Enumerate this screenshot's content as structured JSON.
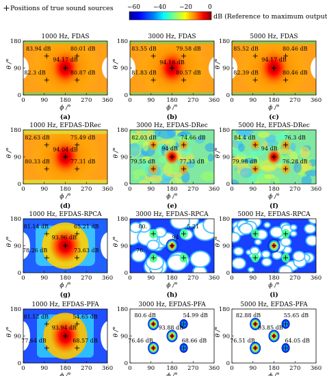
{
  "legend": {
    "marker_text": "Positions of true sound sources",
    "colorbar_ticks": [
      "−60",
      "−40",
      "−20",
      "0"
    ],
    "colorbar_label": "dB (Reference to maximum output)",
    "colormap": [
      "#00008f",
      "#0000ff",
      "#0080ff",
      "#00ffff",
      "#80ff80",
      "#ffff00",
      "#ff8000",
      "#ff0000",
      "#800000"
    ]
  },
  "axes": {
    "xlabel": "ϕ /°",
    "ylabel": "θ /°",
    "xticks": [
      "0",
      "90",
      "180",
      "270",
      "360"
    ],
    "yticks": [
      "0",
      "90",
      "180"
    ],
    "xlim": [
      0,
      360
    ],
    "ylim": [
      0,
      180
    ]
  },
  "chart_data": [
    {
      "type": "heatmap",
      "title": "1000 Hz, FDAS",
      "tag": "(a)",
      "style": "fdas",
      "sources": [
        {
          "x": 100,
          "y": 130
        },
        {
          "x": 230,
          "y": 130
        },
        {
          "x": 180,
          "y": 90
        },
        {
          "x": 100,
          "y": 50
        },
        {
          "x": 230,
          "y": 50
        }
      ],
      "labels": [
        {
          "text": "83.94 dB",
          "x": 65,
          "y": 148
        },
        {
          "text": "80.01 dB",
          "x": 255,
          "y": 148
        },
        {
          "text": "94.17 dB",
          "x": 180,
          "y": 112
        },
        {
          "text": "82.3 dB",
          "x": 50,
          "y": 68
        },
        {
          "text": "80.87 dB",
          "x": 255,
          "y": 68
        }
      ]
    },
    {
      "type": "heatmap",
      "title": "3000 Hz, FDAS",
      "tag": "(b)",
      "style": "fdas",
      "sources": [
        {
          "x": 100,
          "y": 130
        },
        {
          "x": 230,
          "y": 130
        },
        {
          "x": 180,
          "y": 90
        },
        {
          "x": 100,
          "y": 50
        },
        {
          "x": 230,
          "y": 50
        }
      ],
      "labels": [
        {
          "text": "83.55 dB",
          "x": 60,
          "y": 148
        },
        {
          "text": "79.58 dB",
          "x": 250,
          "y": 148
        },
        {
          "text": "94.16 dB",
          "x": 180,
          "y": 103
        },
        {
          "text": "81.83 dB",
          "x": 60,
          "y": 68
        },
        {
          "text": "80.57 dB",
          "x": 250,
          "y": 68
        }
      ]
    },
    {
      "type": "heatmap",
      "title": "5000 Hz, FDAS",
      "tag": "(c)",
      "style": "fdas",
      "sources": [
        {
          "x": 100,
          "y": 130
        },
        {
          "x": 230,
          "y": 130
        },
        {
          "x": 180,
          "y": 90
        },
        {
          "x": 100,
          "y": 50
        },
        {
          "x": 230,
          "y": 50
        }
      ],
      "labels": [
        {
          "text": "85.52 dB",
          "x": 60,
          "y": 148
        },
        {
          "text": "80.46 dB",
          "x": 270,
          "y": 148
        },
        {
          "text": "94.17 dB",
          "x": 180,
          "y": 112
        },
        {
          "text": "82.39 dB",
          "x": 60,
          "y": 68
        },
        {
          "text": "80.46 dB",
          "x": 270,
          "y": 68
        }
      ]
    },
    {
      "type": "heatmap",
      "title": "1000 Hz, EFDAS-DRec",
      "tag": "(d)",
      "style": "drec_low",
      "sources": [
        {
          "x": 100,
          "y": 130
        },
        {
          "x": 230,
          "y": 130
        },
        {
          "x": 180,
          "y": 90
        },
        {
          "x": 100,
          "y": 50
        },
        {
          "x": 230,
          "y": 50
        }
      ],
      "labels": [
        {
          "text": "82.63 dB",
          "x": 60,
          "y": 148
        },
        {
          "text": "75.49 dB",
          "x": 255,
          "y": 148
        },
        {
          "text": "94.04 dB",
          "x": 180,
          "y": 108
        },
        {
          "text": "80.33 dB",
          "x": 60,
          "y": 68
        },
        {
          "text": "77.31 dB",
          "x": 255,
          "y": 68
        }
      ]
    },
    {
      "type": "heatmap",
      "title": "3000 Hz, EFDAS-DRec",
      "tag": "(e)",
      "style": "drec_high",
      "sources": [
        {
          "x": 100,
          "y": 130
        },
        {
          "x": 230,
          "y": 130
        },
        {
          "x": 180,
          "y": 90
        },
        {
          "x": 100,
          "y": 50
        },
        {
          "x": 230,
          "y": 50
        }
      ],
      "labels": [
        {
          "text": "82.03 dB",
          "x": 60,
          "y": 148
        },
        {
          "text": "74.66 dB",
          "x": 270,
          "y": 148
        },
        {
          "text": "94 dB",
          "x": 170,
          "y": 112
        },
        {
          "text": "79.55 dB",
          "x": 55,
          "y": 68
        },
        {
          "text": "77.33 dB",
          "x": 265,
          "y": 68
        }
      ]
    },
    {
      "type": "heatmap",
      "title": "5000 Hz, EFDAS-DRec",
      "tag": "(f)",
      "style": "drec_high",
      "sources": [
        {
          "x": 100,
          "y": 130
        },
        {
          "x": 230,
          "y": 130
        },
        {
          "x": 180,
          "y": 90
        },
        {
          "x": 100,
          "y": 50
        },
        {
          "x": 230,
          "y": 50
        }
      ],
      "labels": [
        {
          "text": "84.4 dB",
          "x": 55,
          "y": 148
        },
        {
          "text": "76.3 dB",
          "x": 270,
          "y": 148
        },
        {
          "text": "94 dB",
          "x": 160,
          "y": 112
        },
        {
          "text": "79.98 dB",
          "x": 55,
          "y": 68
        },
        {
          "text": "76.28 dB",
          "x": 270,
          "y": 68
        }
      ]
    },
    {
      "type": "heatmap",
      "title": "1000 Hz, EFDAS-RPCA",
      "tag": "(g)",
      "style": "rpca_low",
      "sources": [
        {
          "x": 100,
          "y": 130
        },
        {
          "x": 230,
          "y": 130
        },
        {
          "x": 180,
          "y": 90
        },
        {
          "x": 100,
          "y": 50
        },
        {
          "x": 230,
          "y": 50
        }
      ],
      "labels": [
        {
          "text": "81.14 dB",
          "x": 55,
          "y": 148
        },
        {
          "text": "65.21 dB",
          "x": 270,
          "y": 148
        },
        {
          "text": "93.96 dB",
          "x": 175,
          "y": 112
        },
        {
          "text": "78.26 dB",
          "x": 50,
          "y": 68
        },
        {
          "text": "73.63 dB",
          "x": 270,
          "y": 68
        }
      ]
    },
    {
      "type": "heatmap",
      "title": "3000 Hz, EFDAS-RPCA",
      "tag": "(h)",
      "style": "rpca_high",
      "sources": [
        {
          "x": 100,
          "y": 130
        },
        {
          "x": 230,
          "y": 130
        },
        {
          "x": 180,
          "y": 90
        },
        {
          "x": 100,
          "y": 50
        },
        {
          "x": 230,
          "y": 50
        }
      ],
      "labels": [
        {
          "text": "80.",
          "x": 55,
          "y": 148
        },
        {
          "text": "5.21",
          "x": 270,
          "y": 148
        },
        {
          "text": "94",
          "x": 195,
          "y": 112
        },
        {
          "text": "76.",
          "x": 45,
          "y": 68
        },
        {
          "text": "",
          "x": 0,
          "y": 0
        }
      ]
    },
    {
      "type": "heatmap",
      "title": "5000 Hz, EFDAS-RPCA",
      "tag": "(i)",
      "style": "rpca_high2",
      "sources": [
        {
          "x": 100,
          "y": 130
        },
        {
          "x": 230,
          "y": 130
        },
        {
          "x": 180,
          "y": 90
        },
        {
          "x": 100,
          "y": 50
        },
        {
          "x": 230,
          "y": 50
        }
      ],
      "labels": []
    },
    {
      "type": "heatmap",
      "title": "1000 Hz, EFDAS-PFA",
      "tag": "(j)",
      "style": "pfa_low",
      "sources": [
        {
          "x": 100,
          "y": 130
        },
        {
          "x": 230,
          "y": 130
        },
        {
          "x": 180,
          "y": 90
        },
        {
          "x": 100,
          "y": 50
        },
        {
          "x": 230,
          "y": 50
        }
      ],
      "labels": [
        {
          "text": "81.12 dB",
          "x": 55,
          "y": 148
        },
        {
          "text": "54.65 dB",
          "x": 265,
          "y": 148
        },
        {
          "text": "93.94 dB",
          "x": 175,
          "y": 112
        },
        {
          "text": "77.64 dB",
          "x": 45,
          "y": 68
        },
        {
          "text": "68.57 dB",
          "x": 265,
          "y": 68
        }
      ]
    },
    {
      "type": "heatmap",
      "title": "3000 Hz, EFDAS-PFA",
      "tag": "(k)",
      "style": "pfa",
      "sources": [
        {
          "x": 100,
          "y": 130
        },
        {
          "x": 230,
          "y": 130
        },
        {
          "x": 180,
          "y": 90
        },
        {
          "x": 100,
          "y": 50
        },
        {
          "x": 230,
          "y": 50
        }
      ],
      "labels": [
        {
          "text": "80.6 dB",
          "x": 65,
          "y": 153
        },
        {
          "text": "54.99 dB",
          "x": 280,
          "y": 153
        },
        {
          "text": "93.88 dB",
          "x": 175,
          "y": 112
        },
        {
          "text": "76.46 dB",
          "x": 45,
          "y": 68
        },
        {
          "text": "68.66 dB",
          "x": 275,
          "y": 68
        }
      ]
    },
    {
      "type": "heatmap",
      "title": "5000 Hz, EFDAS-PFA",
      "tag": "(l)",
      "style": "pfa",
      "sources": [
        {
          "x": 100,
          "y": 130
        },
        {
          "x": 230,
          "y": 130
        },
        {
          "x": 180,
          "y": 90
        },
        {
          "x": 100,
          "y": 50
        },
        {
          "x": 230,
          "y": 50
        }
      ],
      "labels": [
        {
          "text": "82.88 dB",
          "x": 70,
          "y": 153
        },
        {
          "text": "55.65 dB",
          "x": 275,
          "y": 153
        },
        {
          "text": "93.85 dB",
          "x": 165,
          "y": 112
        },
        {
          "text": "76.51 dB",
          "x": 45,
          "y": 68
        },
        {
          "text": "64.05 dB",
          "x": 280,
          "y": 68
        }
      ]
    }
  ]
}
